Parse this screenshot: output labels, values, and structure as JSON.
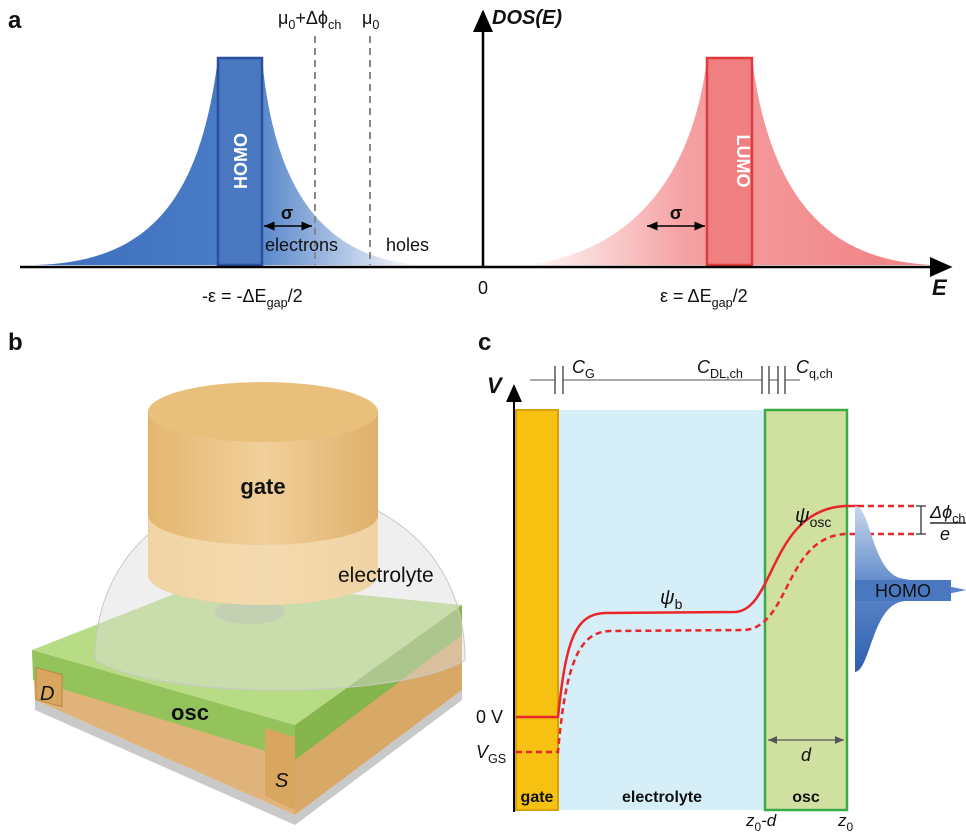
{
  "panel_a": {
    "label": "a",
    "y_axis": "DOS(E)",
    "x_axis": "E",
    "origin": "0",
    "homo": "HOMO",
    "lumo": "LUMO",
    "sigma_labels": [
      "σ",
      "σ"
    ],
    "electrons": "electrons",
    "holes": "holes",
    "mu_shift": [
      "μ",
      "0",
      "+Δϕ",
      "ch"
    ],
    "mu": [
      "μ",
      "0"
    ],
    "homo_energy": [
      "-ε = -ΔE",
      "gap",
      "/2"
    ],
    "lumo_energy": [
      "ε = ΔE",
      "gap",
      "/2"
    ]
  },
  "panel_b": {
    "label": "b",
    "gate": "gate",
    "electrolyte": "electrolyte",
    "osc": "osc",
    "drain": "D",
    "source": "S"
  },
  "panel_c": {
    "label": "c",
    "v_axis": "V",
    "cap_gate": [
      "C",
      "G"
    ],
    "cap_dl": [
      "C",
      "DL,ch"
    ],
    "cap_q": [
      "C",
      "q,ch"
    ],
    "psi_b": [
      "ψ",
      "b"
    ],
    "psi_osc": [
      "ψ",
      "osc"
    ],
    "zero_v": "0 V",
    "v_gs": [
      "V",
      "GS"
    ],
    "delta_phi": [
      "Δϕ",
      "ch"
    ],
    "delta_phi_den": "e",
    "homo": "HOMO",
    "d": "d",
    "regions": [
      "gate",
      "electrolyte",
      "osc"
    ],
    "z_left": [
      "z",
      "0",
      "-d"
    ],
    "z_right": [
      "z",
      "0"
    ]
  }
}
